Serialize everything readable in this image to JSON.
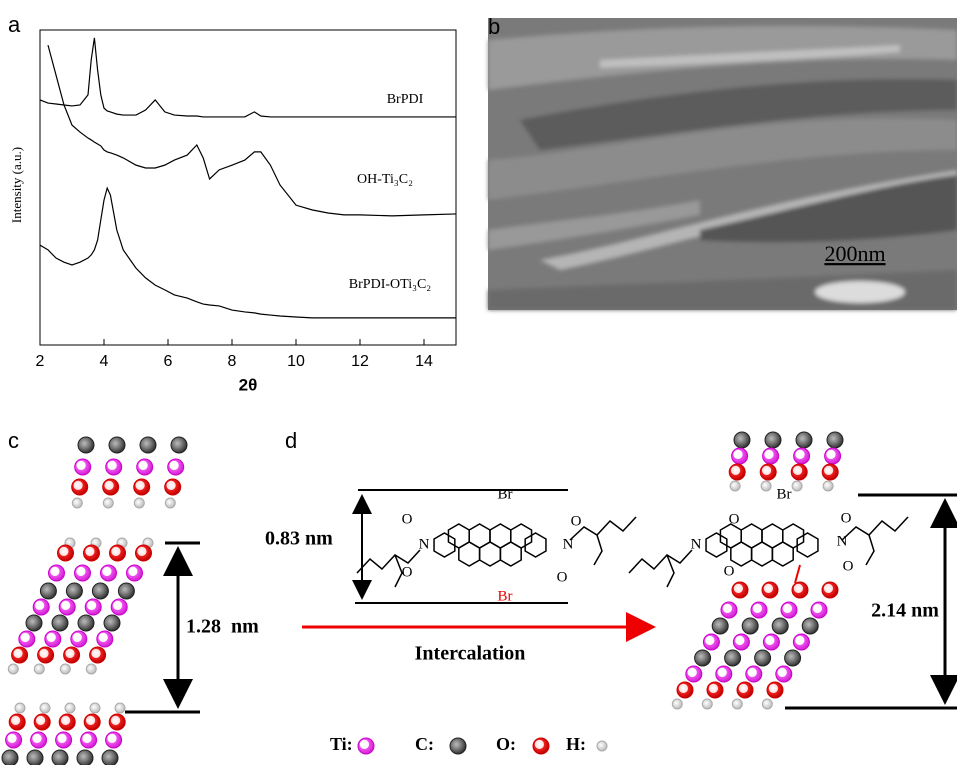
{
  "chart_data": {
    "type": "line",
    "panel_label": "a",
    "xlabel": "2θ",
    "ylabel": "Intensity (a.u.)",
    "x": [
      2,
      2.25,
      2.5,
      2.75,
      3,
      3.25,
      3.5,
      3.6,
      3.7,
      3.8,
      3.9,
      4,
      4.1,
      4.2,
      4.4,
      4.6,
      5,
      5.3,
      5.6,
      5.9,
      6.2,
      6.6,
      6.9,
      7.1,
      7.3,
      7.6,
      8,
      8.4,
      8.7,
      8.9,
      9.2,
      9.5,
      10,
      10.5,
      11,
      11.5,
      12,
      13,
      14,
      15
    ],
    "series": [
      {
        "name": "BrPDI",
        "color": "#000000",
        "values": [
          77.8,
          76.8,
          76.5,
          76.2,
          75.9,
          76.2,
          79.4,
          90.5,
          97.5,
          87.3,
          79.4,
          75.2,
          74.3,
          74.0,
          73.3,
          73.0,
          73.0,
          74.6,
          77.8,
          74.0,
          73.0,
          72.7,
          72.7,
          72.4,
          72.4,
          72.4,
          72.4,
          72.4,
          74.0,
          72.7,
          72.4,
          72.4,
          72.4,
          72.4,
          72.4,
          72.4,
          72.4,
          72.4,
          72.4,
          72.4
        ]
      },
      {
        "name": "OH-Ti₃C₂",
        "color": "#000000",
        "values": [
          null,
          95.2,
          85.7,
          76.2,
          69.8,
          67.6,
          65.7,
          65.1,
          64.4,
          63.8,
          63.2,
          61.9,
          61.3,
          61.0,
          60.3,
          59.4,
          57.1,
          56.2,
          56.2,
          57.1,
          58.7,
          60.3,
          63.5,
          59.4,
          52.7,
          55.6,
          57.1,
          58.7,
          61.3,
          61.3,
          57.1,
          50.8,
          44.4,
          42.9,
          41.9,
          41.3,
          41.3,
          41.0,
          41.3,
          41.6
        ]
      },
      {
        "name": "BrPDI-OTi₃C₂",
        "color": "#000000",
        "values": [
          31.7,
          30.2,
          27.6,
          26.3,
          25.4,
          26.3,
          27.6,
          28.6,
          30.2,
          33.3,
          39.7,
          46.0,
          49.8,
          47.6,
          36.5,
          30.2,
          24.4,
          21.3,
          19.0,
          17.5,
          15.9,
          14.9,
          13.7,
          13.0,
          12.7,
          12.4,
          11.1,
          10.5,
          10.2,
          9.8,
          9.5,
          9.2,
          8.9,
          8.6,
          8.6,
          8.6,
          8.6,
          8.6,
          8.6,
          8.6
        ]
      }
    ],
    "xlim": [
      2,
      15
    ],
    "xticks": [
      2,
      4,
      6,
      8,
      10,
      12,
      14
    ],
    "ylim": [
      0,
      100
    ]
  },
  "panel_b": {
    "label": "b",
    "scale_bar": "200nm"
  },
  "panel_c": {
    "label": "c",
    "spacing": "1.28  nm"
  },
  "panel_d": {
    "label": "d",
    "spacing": "0.83 nm",
    "arrow_label": "Intercalation",
    "result_spacing": "2.14 nm",
    "molecule_atoms": [
      "Br",
      "Br",
      "N",
      "N",
      "O",
      "O",
      "O",
      "O"
    ],
    "intercalated_atoms": [
      "Br",
      "N",
      "N",
      "O",
      "O",
      "O",
      "O"
    ]
  },
  "legend": [
    "Ti:",
    "C:",
    "O:",
    "H:"
  ]
}
